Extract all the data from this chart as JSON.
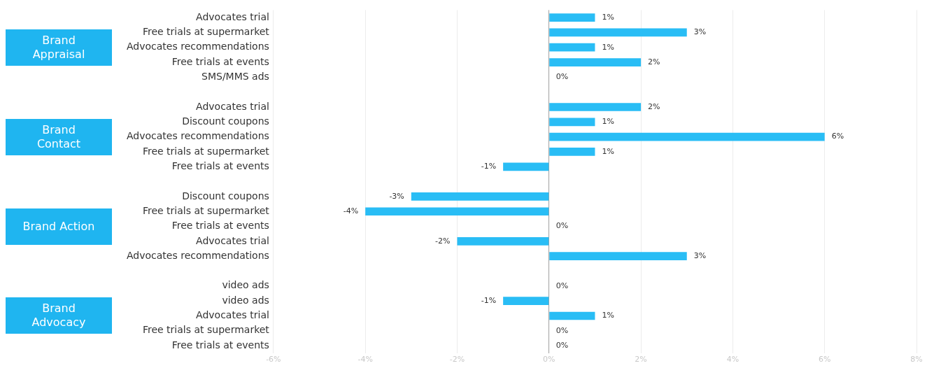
{
  "chart_data": {
    "type": "bar",
    "orientation": "horizontal",
    "categories": [
      "Advocates trial",
      "Free trials at supermarket",
      "Advocates recommendations",
      "Free trials at events",
      "SMS/MMS ads",
      null,
      "Advocates trial",
      "Discount coupons",
      "Advocates recommendations",
      "Free trials at supermarket",
      "Free trials at events",
      null,
      "Discount coupons",
      "Free trials at supermarket",
      "Free trials at events",
      "Advocates trial",
      "Advocates recommendations",
      null,
      "video ads",
      "video ads",
      "Advocates trial",
      "Free trials at supermarket",
      "Free trials at events"
    ],
    "values": [
      1,
      3,
      1,
      2,
      0,
      null,
      2,
      1,
      6,
      1,
      -1,
      null,
      -3,
      -4,
      0,
      -2,
      3,
      null,
      0,
      -1,
      1,
      0,
      0
    ],
    "value_labels": [
      "1%",
      "3%",
      "1%",
      "2%",
      "0%",
      null,
      "2%",
      "1%",
      "6%",
      "1%",
      "-1%",
      null,
      "-3%",
      "-4%",
      "0%",
      "-2%",
      "3%",
      null,
      "0%",
      "-1%",
      "1%",
      "0%",
      "0%"
    ],
    "color": "#29bdf5",
    "xlim": [
      -6,
      8
    ],
    "xticks": [
      {
        "value": -6,
        "label": "-6%"
      },
      {
        "value": -4,
        "label": "-4%"
      },
      {
        "value": -2,
        "label": "-2%"
      },
      {
        "value": 0,
        "label": "0%"
      },
      {
        "value": 2,
        "label": "2%"
      },
      {
        "value": 4,
        "label": "4%"
      },
      {
        "value": 6,
        "label": "6%"
      },
      {
        "value": 8,
        "label": "8%"
      }
    ],
    "grid": "x",
    "legend": false,
    "annotations": [
      "Brand Appraisal",
      "Brand Contact",
      "Brand Action",
      "Brand Advocacy"
    ]
  }
}
